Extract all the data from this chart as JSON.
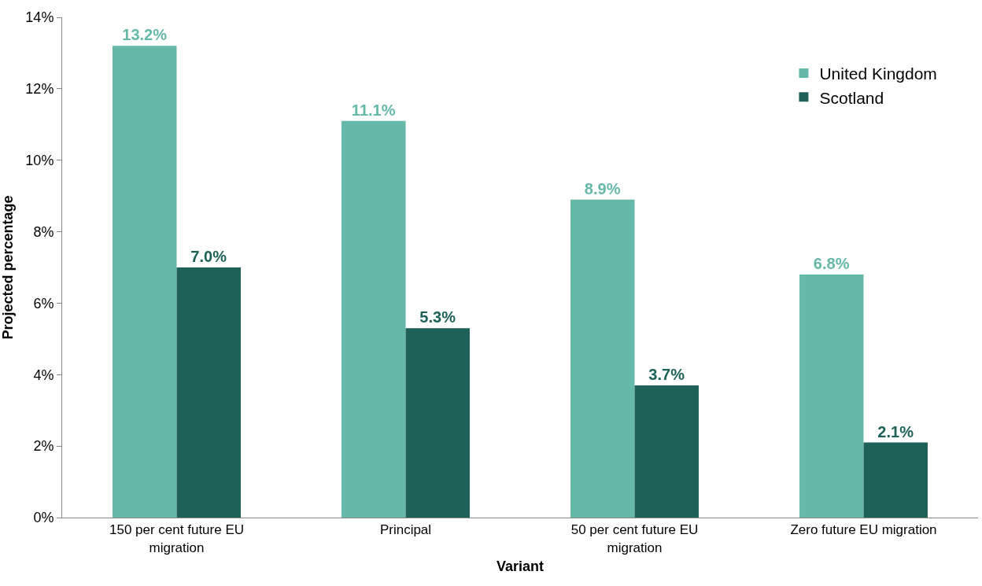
{
  "chart_data": {
    "type": "bar",
    "xlabel": "Variant",
    "ylabel": "Projected percentage",
    "categories": [
      "150 per cent future EU migration",
      "Principal",
      "50 per cent future EU migration",
      "Zero future EU migration"
    ],
    "series": [
      {
        "name": "United Kingdom",
        "color": "#66b9a9",
        "values": [
          13.2,
          11.1,
          8.9,
          6.8
        ],
        "value_labels": [
          "13.2%",
          "11.1%",
          "8.9%",
          "6.8%"
        ]
      },
      {
        "name": "Scotland",
        "color": "#1e6159",
        "values": [
          7.0,
          5.3,
          3.7,
          2.1
        ],
        "value_labels": [
          "7.0%",
          "5.3%",
          "3.7%",
          "2.1%"
        ]
      }
    ],
    "ylim": [
      0,
      14
    ],
    "yticks": [
      {
        "value": 0,
        "label": "0%"
      },
      {
        "value": 2,
        "label": "2%"
      },
      {
        "value": 4,
        "label": "4%"
      },
      {
        "value": 6,
        "label": "6%"
      },
      {
        "value": 8,
        "label": "8%"
      },
      {
        "value": 10,
        "label": "10%"
      },
      {
        "value": 12,
        "label": "12%"
      },
      {
        "value": 14,
        "label": "14%"
      }
    ],
    "legend": "top right"
  }
}
